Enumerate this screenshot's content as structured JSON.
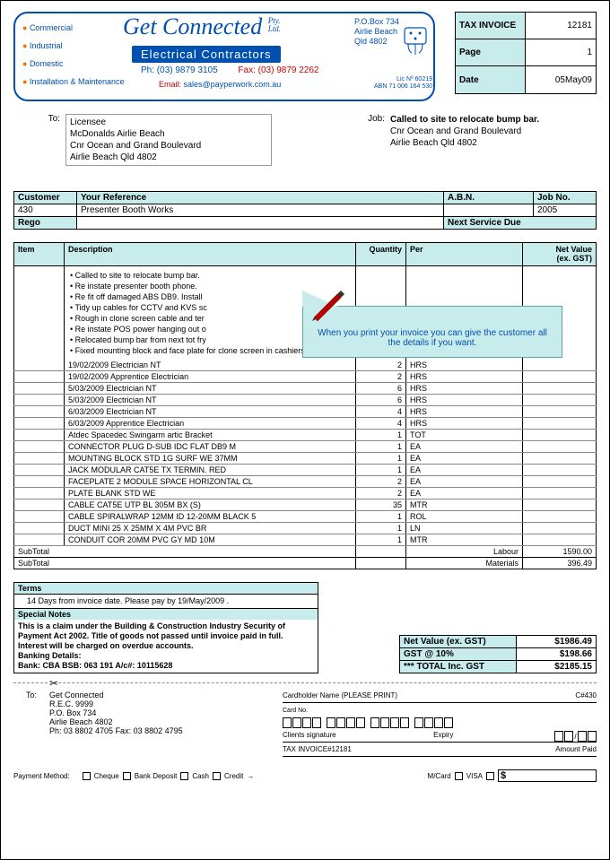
{
  "brand": {
    "name": "Get Connected",
    "pty": "Pty.\nLtd.",
    "sub": "Electrical Contractors",
    "services": [
      "Commercial",
      "Industrial",
      "Domestic",
      "Installation & Maintenance"
    ],
    "addr": "P.O.Box 734\nAirlie Beach\nQld 4802",
    "ph_label": "Ph:",
    "ph": "(03) 9879 3105",
    "fax_label": "Fax:",
    "fax": "(03) 9879 2262",
    "email_label": "Email:",
    "email": "sales@payperwork.com.au",
    "lic": "Lic Nº  60219",
    "abn": "ABN 71 006 164 530"
  },
  "meta": {
    "k1": "TAX INVOICE",
    "v1": "12181",
    "k2": "Page",
    "v2": "1",
    "k3": "Date",
    "v3": "05May09"
  },
  "to_label": "To:",
  "to_addr": "Licensee\nMcDonalds Airlie Beach\nCnr Ocean and Grand Boulevard\nAirlie Beach  Qld   4802",
  "job_label": "Job:",
  "job_line1": "Called to site to relocate bump bar.",
  "job_line2": "Cnr Ocean and Grand Boulevard\nAirlie Beach  Qld   4802",
  "cust_hdr": {
    "c": "Customer",
    "r": "Your Reference",
    "a": "A.B.N.",
    "j": "Job No."
  },
  "cust": {
    "c": "430",
    "r": "Presenter Booth Works",
    "a": "",
    "j": "2005"
  },
  "rego_hdr": "Rego",
  "next_hdr": "Next Service Due",
  "item_hdr": {
    "i": "Item",
    "d": "Description",
    "q": "Quantity",
    "p": "Per",
    "n": "Net Value\n(ex. GST)"
  },
  "notes": [
    "Called to site to relocate bump bar.",
    "Re instate presenter booth phone.",
    "Re fit off  damaged ABS DB9. Install",
    "Tidy up cables for CCTV and KVS sc",
    "Rough in clone screen cable and ter",
    "Re instate POS power hanging out o",
    "Relocated bump bar from next tot fry",
    "Fixed mounting block and face plate for clone screen in cashiers booth."
  ],
  "lines": [
    {
      "d": "19/02/2009 Electrician NT",
      "q": "2",
      "p": "HRS",
      "n": ""
    },
    {
      "d": "19/02/2009 Apprentice Electrician",
      "q": "2",
      "p": "HRS",
      "n": ""
    },
    {
      "d": "5/03/2009 Electrician NT",
      "q": "6",
      "p": "HRS",
      "n": ""
    },
    {
      "d": "5/03/2009 Electrician NT",
      "q": "6",
      "p": "HRS",
      "n": ""
    },
    {
      "d": "6/03/2009 Electrician NT",
      "q": "4",
      "p": "HRS",
      "n": ""
    },
    {
      "d": "6/03/2009 Apprentice Electrician",
      "q": "4",
      "p": "HRS",
      "n": ""
    },
    {
      "d": "Atdec Spacedec Swingarm artic Bracket",
      "q": "1",
      "p": "TOT",
      "n": ""
    },
    {
      "d": "CONNECTOR PLUG D-SUB IDC FLAT DB9 M",
      "q": "1",
      "p": "EA",
      "n": ""
    },
    {
      "d": "MOUNTING BLOCK STD 1G SURF WE 37MM",
      "q": "1",
      "p": "EA",
      "n": ""
    },
    {
      "d": "JACK MODULAR CAT5E TX TERMIN. RED",
      "q": "1",
      "p": "EA",
      "n": ""
    },
    {
      "d": "FACEPLATE 2 MODULE SPACE HORIZONTAL CL",
      "q": "2",
      "p": "EA",
      "n": ""
    },
    {
      "d": "PLATE BLANK STD WE",
      "q": "2",
      "p": "EA",
      "n": ""
    },
    {
      "d": "CABLE CAT5E UTP BL 305M BX          (S)",
      "q": "35",
      "p": "MTR",
      "n": ""
    },
    {
      "d": "CABLE SPIRALWRAP 12MM ID 12-20MM BLACK 5",
      "q": "1",
      "p": "ROL",
      "n": ""
    },
    {
      "d": "DUCT MINI 25 X 25MM X 4M PVC BR",
      "q": "1",
      "p": "LN",
      "n": ""
    },
    {
      "d": "CONDUIT COR 20MM PVC GY MD 10M",
      "q": "1",
      "p": "MTR",
      "n": ""
    }
  ],
  "subtotals": [
    {
      "l": "SubTotal",
      "k": "Labour",
      "v": "1590.00"
    },
    {
      "l": "SubTotal",
      "k": "Materials",
      "v": "396.49"
    }
  ],
  "callout": "When you print your invoice you can give the customer all the details if you want.",
  "terms_hdr": "Terms",
  "terms_body": "    14 Days from invoice date. Please pay by 19/May/2009 .",
  "notes_hdr": "Special Notes",
  "notes_body": "This is a claim under the Building & Construction Industry Security of Payment Act 2002. Title of goods not passed until invoice paid in full. Interest will be charged on overdue accounts.\nBanking Details:\nBank: CBA  BSB: 063 191 A/c#: 10115628",
  "totals": [
    {
      "k": "Net Value (ex. GST)",
      "v": "$1986.49"
    },
    {
      "k": "GST @  10%",
      "v": "$198.66"
    },
    {
      "k": "*** TOTAL Inc. GST",
      "v": "$2185.15"
    }
  ],
  "remit": {
    "to": "To:",
    "addr": "Get Connected\nR.E.C. 9999\nP.O. Box 734\nAirlie Beach 4802\nPh:  03 8802 4705    Fax:  03 8802 4795",
    "cardholder": "Cardholder Name (PLEASE PRINT)",
    "cref": "C#430",
    "cardno": "Card No.",
    "sig": "Clients signature",
    "expiry": "Expiry",
    "taxinv": "TAX INVOICE#12181",
    "amtpaid": "Amount Paid"
  },
  "pay": {
    "lbl": "Payment Method:",
    "cheque": "Cheque",
    "bank": "Bank Deposit",
    "cash": "Cash",
    "credit": "Credit",
    "mcard": "M/Card",
    "visa": "VISA",
    "dollar": "$"
  }
}
